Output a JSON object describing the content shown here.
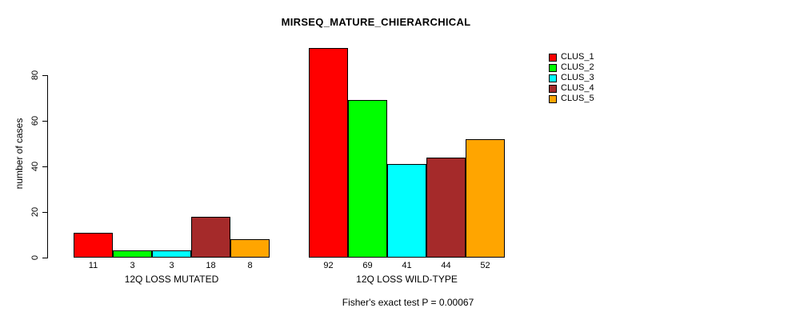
{
  "chart_data": {
    "type": "bar",
    "title": "MIRSEQ_MATURE_CHIERARCHICAL",
    "ylabel": "number of cases",
    "xlabel": "",
    "ylim": [
      0,
      92
    ],
    "yticks": [
      0,
      20,
      40,
      60,
      80
    ],
    "grid": false,
    "legend_position": "top-right",
    "categories": [
      "12Q LOSS MUTATED",
      "12Q LOSS WILD-TYPE"
    ],
    "series": [
      {
        "name": "CLUS_1",
        "color": "#FF0000",
        "values": [
          11,
          92
        ]
      },
      {
        "name": "CLUS_2",
        "color": "#00FF00",
        "values": [
          3,
          69
        ]
      },
      {
        "name": "CLUS_3",
        "color": "#00FFFF",
        "values": [
          3,
          41
        ]
      },
      {
        "name": "CLUS_4",
        "color": "#A52A2A",
        "values": [
          18,
          44
        ]
      },
      {
        "name": "CLUS_5",
        "color": "#FFA500",
        "values": [
          8,
          52
        ]
      }
    ],
    "bar_value_labels": true,
    "annotation": "Fisher's exact test P = 0.00067"
  }
}
